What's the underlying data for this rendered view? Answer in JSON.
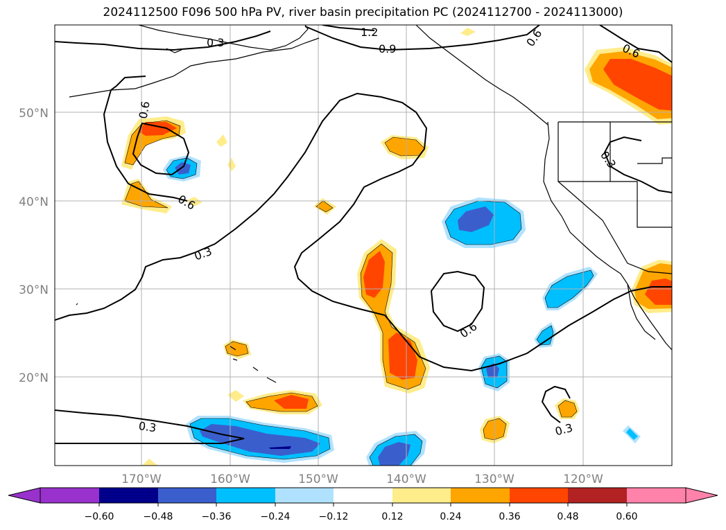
{
  "title": "2024112500 F096 500 hPa PV, river basin precipitation PC (2024112700 - 2024113000)",
  "map": {
    "lat_labels": [
      "50°N",
      "40°N",
      "30°N",
      "20°N"
    ],
    "lon_labels": [
      "170°W",
      "160°W",
      "150°W",
      "140°W",
      "130°W",
      "120°W"
    ],
    "contour_labels": [
      "0.3",
      "1.2",
      "0.9",
      "0.6",
      "0.6",
      "0.6",
      "0.3",
      "0.6",
      "0.3",
      "0.6",
      "0.3",
      "0.3"
    ]
  },
  "colorbar": {
    "ticks": [
      "−0.60",
      "−0.48",
      "−0.36",
      "−0.24",
      "−0.12",
      "0.12",
      "0.24",
      "0.36",
      "0.48",
      "0.60"
    ],
    "colors": [
      "#9932cc",
      "#00008b",
      "#3a5fcd",
      "#00bfff",
      "#b0e2ff",
      "#ffffff",
      "#ffec8b",
      "#ffa500",
      "#ff4500",
      "#b22222",
      "#ff82ab"
    ]
  }
}
